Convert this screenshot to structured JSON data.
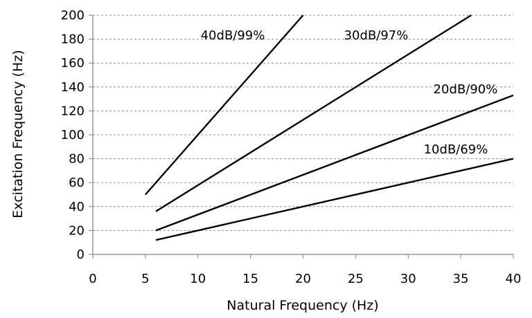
{
  "chart_data": {
    "type": "line",
    "title": "",
    "xlabel": "Natural Frequency (Hz)",
    "ylabel": "Excitation Frequency (Hz)",
    "xlim": [
      0,
      40
    ],
    "ylim": [
      0,
      200
    ],
    "xticks": [
      "0",
      "5",
      "10",
      "15",
      "20",
      "25",
      "30",
      "35",
      "40"
    ],
    "yticks": [
      "0",
      "20",
      "40",
      "60",
      "80",
      "100",
      "120",
      "140",
      "160",
      "180",
      "200"
    ],
    "grid": "horizontal dashed",
    "legend": "none",
    "line_color": "#000000",
    "series": [
      {
        "label": "40dB/99%",
        "x": [
          5,
          20
        ],
        "y": [
          50,
          200
        ]
      },
      {
        "label": "30dB/97%",
        "x": [
          6,
          36
        ],
        "y": [
          36,
          200
        ]
      },
      {
        "label": "20dB/90%",
        "x": [
          6,
          40
        ],
        "y": [
          20,
          133
        ]
      },
      {
        "label": "10dB/69%",
        "x": [
          6,
          40
        ],
        "y": [
          12,
          80
        ]
      }
    ]
  }
}
